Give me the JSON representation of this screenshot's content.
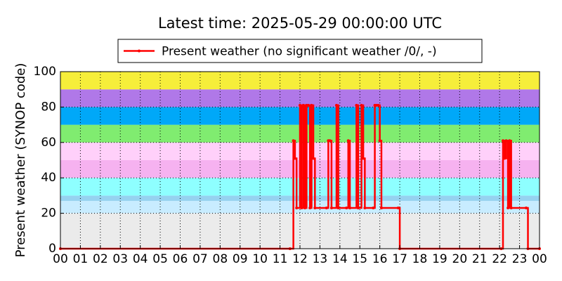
{
  "chart_data": {
    "type": "line",
    "title": "Latest time: 2025-05-29 00:00:00 UTC",
    "y_label": "Present weather (SYNOP code)",
    "legend": "top",
    "grid": true,
    "drawstyle": "steps",
    "xlim": [
      0,
      24
    ],
    "xticks": [
      {
        "value": 0,
        "label": "00"
      },
      {
        "value": 1,
        "label": "01"
      },
      {
        "value": 2,
        "label": "02"
      },
      {
        "value": 3,
        "label": "03"
      },
      {
        "value": 4,
        "label": "04"
      },
      {
        "value": 5,
        "label": "05"
      },
      {
        "value": 6,
        "label": "06"
      },
      {
        "value": 7,
        "label": "07"
      },
      {
        "value": 8,
        "label": "08"
      },
      {
        "value": 9,
        "label": "09"
      },
      10,
      11,
      12,
      13,
      14,
      15,
      16,
      17,
      18,
      19,
      20,
      21,
      22,
      23,
      {
        "value": 24,
        "label": "00"
      }
    ],
    "ylim": [
      0,
      100
    ],
    "yticks": [
      0,
      20,
      40,
      60,
      80,
      100
    ],
    "bands": [
      {
        "from": 0,
        "to": 20,
        "color": "#ebebeb"
      },
      {
        "from": 20,
        "to": 27,
        "color": "#c8ecff"
      },
      {
        "from": 27,
        "to": 30,
        "color": "#96d2f0"
      },
      {
        "from": 30,
        "to": 40,
        "color": "#8effff"
      },
      {
        "from": 40,
        "to": 50,
        "color": "#f6b2f0"
      },
      {
        "from": 50,
        "to": 60,
        "color": "#ffd0fa"
      },
      {
        "from": 60,
        "to": 70,
        "color": "#80ec70"
      },
      {
        "from": 70,
        "to": 80,
        "color": "#00a8f8"
      },
      {
        "from": 80,
        "to": 90,
        "color": "#b078e8"
      },
      {
        "from": 90,
        "to": 100,
        "color": "#f6ee3a"
      }
    ],
    "x": [
      0,
      11.5,
      11.67,
      11.75,
      11.83,
      12,
      12.08,
      12.17,
      12.25,
      12.33,
      12.42,
      12.5,
      12.58,
      12.67,
      12.75,
      13.33,
      13.42,
      13.5,
      13.58,
      13.83,
      13.92,
      14.33,
      14.42,
      14.5,
      14.83,
      14.92,
      15.08,
      15.17,
      15.25,
      15.67,
      15.75,
      15.83,
      15.92,
      16,
      16.08,
      16.92,
      17,
      22.08,
      22.17,
      22.25,
      22.33,
      22.42,
      22.5,
      22.58,
      23.33,
      23.42,
      24
    ],
    "series": [
      {
        "name": "Present weather (no significant weather /0/, -)",
        "color": "#ff0000",
        "values": [
          0,
          0,
          61,
          51,
          23,
          81,
          23,
          81,
          23,
          81,
          81,
          23,
          81,
          51,
          23,
          23,
          61,
          61,
          23,
          81,
          23,
          23,
          61,
          23,
          81,
          23,
          81,
          51,
          23,
          23,
          81,
          81,
          81,
          61,
          23,
          23,
          0,
          0,
          61,
          51,
          61,
          23,
          61,
          23,
          23,
          0,
          0
        ]
      }
    ]
  }
}
